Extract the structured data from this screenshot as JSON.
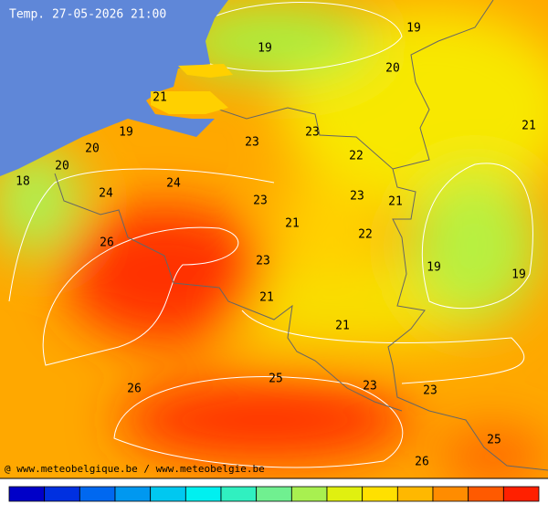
{
  "title": "Temp. 27-05-2026 21:00",
  "credit": "@ www.meteobelgique.be / www.meteobelgie.be",
  "contour_labels": [
    "19",
    "19",
    "20",
    "21",
    "19",
    "20",
    "20",
    "18",
    "23",
    "23",
    "22",
    "24",
    "24",
    "23",
    "23",
    "21",
    "21",
    "22",
    "26",
    "23",
    "19",
    "19",
    "21",
    "21",
    "21",
    "25",
    "26",
    "23",
    "23",
    "25",
    "26"
  ]
}
